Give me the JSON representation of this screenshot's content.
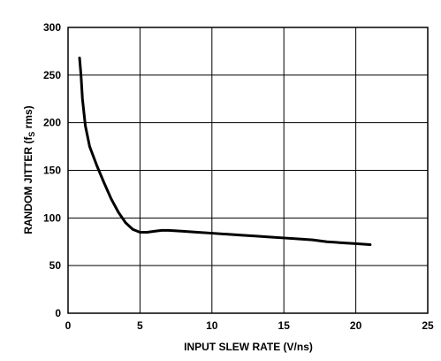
{
  "chart_data": {
    "type": "line",
    "xlabel": "INPUT SLEW RATE (V/ns)",
    "ylabel_main": "RANDOM JITTER (f",
    "ylabel_sub": "S",
    "ylabel_tail": " rms)",
    "xlim": [
      0,
      25
    ],
    "ylim": [
      0,
      300
    ],
    "x_ticks": [
      0,
      5,
      10,
      15,
      20,
      25
    ],
    "y_ticks": [
      0,
      50,
      100,
      150,
      200,
      250,
      300
    ],
    "grid": true,
    "series": [
      {
        "color": "#000000",
        "points": [
          [
            0.8,
            268
          ],
          [
            0.9,
            250
          ],
          [
            1.0,
            225
          ],
          [
            1.2,
            197
          ],
          [
            1.5,
            175
          ],
          [
            2.0,
            155
          ],
          [
            2.5,
            137
          ],
          [
            3.0,
            120
          ],
          [
            3.5,
            106
          ],
          [
            4.0,
            95
          ],
          [
            4.5,
            88
          ],
          [
            5.0,
            85
          ],
          [
            5.5,
            85
          ],
          [
            6.0,
            86
          ],
          [
            6.5,
            87
          ],
          [
            7.0,
            87
          ],
          [
            8.0,
            86
          ],
          [
            9.0,
            85
          ],
          [
            10.0,
            84
          ],
          [
            11.0,
            83
          ],
          [
            12.0,
            82
          ],
          [
            13.0,
            81
          ],
          [
            14.0,
            80
          ],
          [
            15.0,
            79
          ],
          [
            16.0,
            78
          ],
          [
            17.0,
            77
          ],
          [
            18.0,
            75
          ],
          [
            19.0,
            74
          ],
          [
            20.0,
            73
          ],
          [
            21.0,
            72
          ]
        ]
      }
    ]
  }
}
